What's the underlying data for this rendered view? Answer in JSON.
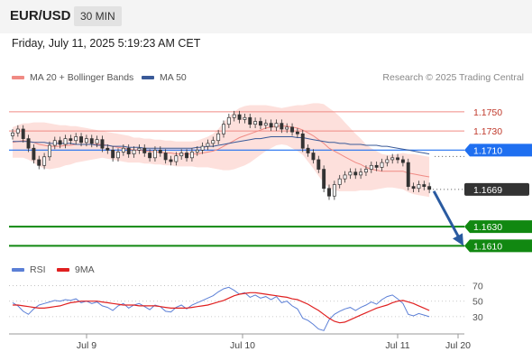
{
  "header": {
    "pair": "EUR/USD",
    "timeframe": "30 MIN"
  },
  "timestamp": "Friday, July 11, 2025 5:19:23 AM CET",
  "legend_main": [
    {
      "label": "MA 20 + Bollinger Bands",
      "color": "#f08a84"
    },
    {
      "label": "MA 50",
      "color": "#3a5a98"
    }
  ],
  "legend_rsi": [
    {
      "label": "RSI",
      "color": "#5b7fd6"
    },
    {
      "label": "9MA",
      "color": "#e02020"
    }
  ],
  "credit": "Research © 2025 Trading Central",
  "colors": {
    "bull": "#ffffff",
    "bear": "#333333",
    "band_fill": "#fde0dc",
    "resistance": "#f08a84",
    "pivot": "#1f6ff0",
    "support": "#118811",
    "price_tag": "#333333",
    "arrow": "#2a5aa0"
  },
  "chart_data": [
    {
      "type": "candlestick",
      "x_ticks": [
        "Jul 9",
        "Jul 10",
        "Jul 11",
        "Jul 20"
      ],
      "ylim": [
        1.16,
        1.1765
      ],
      "levels": [
        {
          "label": "1.1750",
          "value": 1.175,
          "kind": "resistance"
        },
        {
          "label": "1.1730",
          "value": 1.173,
          "kind": "resistance"
        },
        {
          "label": "1.1710",
          "value": 1.171,
          "kind": "pivot"
        },
        {
          "label": "1.1669",
          "value": 1.1669,
          "kind": "price"
        },
        {
          "label": "1.1630",
          "value": 1.163,
          "kind": "support"
        },
        {
          "label": "1.1610",
          "value": 1.161,
          "kind": "support"
        }
      ],
      "close": [
        1.1728,
        1.1732,
        1.1722,
        1.1712,
        1.17,
        1.1694,
        1.1703,
        1.1715,
        1.172,
        1.1716,
        1.1722,
        1.172,
        1.1724,
        1.1718,
        1.1722,
        1.1717,
        1.1721,
        1.1712,
        1.171,
        1.1702,
        1.1708,
        1.1712,
        1.1706,
        1.171,
        1.1712,
        1.1707,
        1.1702,
        1.171,
        1.1707,
        1.17,
        1.1698,
        1.1704,
        1.1707,
        1.1702,
        1.1708,
        1.171,
        1.1714,
        1.1717,
        1.172,
        1.1727,
        1.1737,
        1.1744,
        1.1747,
        1.1742,
        1.1744,
        1.1737,
        1.174,
        1.1736,
        1.1738,
        1.1734,
        1.1738,
        1.1732,
        1.1734,
        1.1729,
        1.1727,
        1.1712,
        1.1707,
        1.17,
        1.169,
        1.167,
        1.1662,
        1.1674,
        1.168,
        1.1684,
        1.1687,
        1.1684,
        1.1687,
        1.169,
        1.1694,
        1.1692,
        1.1697,
        1.17,
        1.1702,
        1.17,
        1.1697,
        1.1672,
        1.167,
        1.1674,
        1.1672,
        1.1669
      ],
      "ma20": [
        1.1718,
        1.1719,
        1.172,
        1.1719,
        1.1718,
        1.1716,
        1.1715,
        1.1714,
        1.1714,
        1.1714,
        1.1715,
        1.1715,
        1.1716,
        1.1716,
        1.1716,
        1.1716,
        1.1716,
        1.1716,
        1.1715,
        1.1714,
        1.1713,
        1.1712,
        1.1711,
        1.171,
        1.171,
        1.1709,
        1.1709,
        1.1708,
        1.1708,
        1.1707,
        1.1707,
        1.1706,
        1.1706,
        1.1706,
        1.1706,
        1.1706,
        1.1707,
        1.1708,
        1.1709,
        1.1711,
        1.1714,
        1.1717,
        1.172,
        1.1723,
        1.1725,
        1.1727,
        1.1729,
        1.1731,
        1.1733,
        1.1734,
        1.1735,
        1.1735,
        1.1735,
        1.1734,
        1.1733,
        1.1731,
        1.1728,
        1.1725,
        1.1721,
        1.1717,
        1.1712,
        1.1709,
        1.1706,
        1.1703,
        1.17,
        1.1697,
        1.1695,
        1.1692,
        1.169,
        1.1689,
        1.1688,
        1.1688,
        1.1688,
        1.1688,
        1.1688,
        1.1686,
        1.1685,
        1.1684,
        1.1683,
        1.1682
      ],
      "bb_width": [
        0.0016,
        0.0017,
        0.0018,
        0.0019,
        0.0021,
        0.0023,
        0.0024,
        0.0024,
        0.0023,
        0.0022,
        0.0021,
        0.002,
        0.0019,
        0.0018,
        0.0017,
        0.0016,
        0.0015,
        0.0014,
        0.0014,
        0.0014,
        0.0014,
        0.0014,
        0.0014,
        0.0013,
        0.0013,
        0.0013,
        0.0013,
        0.0013,
        0.0013,
        0.0013,
        0.0013,
        0.0013,
        0.0013,
        0.0013,
        0.0013,
        0.0014,
        0.0015,
        0.0016,
        0.0018,
        0.0021,
        0.0025,
        0.0028,
        0.003,
        0.0031,
        0.0031,
        0.003,
        0.0028,
        0.0026,
        0.0024,
        0.0022,
        0.002,
        0.0019,
        0.002,
        0.0022,
        0.0024,
        0.0026,
        0.003,
        0.0034,
        0.0038,
        0.0041,
        0.0042,
        0.0041,
        0.0039,
        0.0036,
        0.0033,
        0.003,
        0.0027,
        0.0024,
        0.0022,
        0.002,
        0.0018,
        0.0017,
        0.0017,
        0.0018,
        0.0019,
        0.002,
        0.0021,
        0.0021,
        0.0021,
        0.0021
      ],
      "ma50": [
        1.1719,
        1.1719,
        1.1719,
        1.1719,
        1.1718,
        1.1718,
        1.1718,
        1.1717,
        1.1717,
        1.1717,
        1.1717,
        1.1717,
        1.1716,
        1.1716,
        1.1716,
        1.1716,
        1.1715,
        1.1715,
        1.1715,
        1.1714,
        1.1714,
        1.1714,
        1.1713,
        1.1713,
        1.1713,
        1.1712,
        1.1712,
        1.1712,
        1.1712,
        1.1712,
        1.1712,
        1.1712,
        1.1712,
        1.1712,
        1.1712,
        1.1713,
        1.1713,
        1.1714,
        1.1714,
        1.1715,
        1.1716,
        1.1717,
        1.1718,
        1.1719,
        1.172,
        1.1721,
        1.1722,
        1.1722,
        1.1723,
        1.1724,
        1.1724,
        1.1724,
        1.1724,
        1.1724,
        1.1723,
        1.1723,
        1.1722,
        1.1721,
        1.172,
        1.1719,
        1.1718,
        1.1718,
        1.1717,
        1.1717,
        1.1716,
        1.1716,
        1.1716,
        1.1715,
        1.1715,
        1.1715,
        1.1714,
        1.1714,
        1.1713,
        1.1712,
        1.1711,
        1.171,
        1.1709,
        1.1708,
        1.1707,
        1.1706
      ],
      "forecast": [
        1.1669,
        1.161
      ]
    },
    {
      "type": "line",
      "name": "RSI",
      "y_ticks": [
        "70",
        "50",
        "30"
      ],
      "ylim": [
        10,
        80
      ],
      "rsi": [
        48,
        44,
        37,
        33,
        40,
        45,
        47,
        49,
        51,
        50,
        52,
        51,
        53,
        48,
        50,
        47,
        49,
        44,
        42,
        38,
        44,
        47,
        41,
        45,
        47,
        43,
        39,
        45,
        43,
        37,
        36,
        42,
        45,
        40,
        45,
        48,
        51,
        54,
        57,
        62,
        66,
        68,
        64,
        59,
        61,
        55,
        58,
        54,
        56,
        52,
        56,
        48,
        50,
        44,
        40,
        28,
        25,
        20,
        14,
        12,
        26,
        33,
        37,
        40,
        42,
        38,
        42,
        45,
        49,
        46,
        52,
        56,
        58,
        53,
        47,
        33,
        31,
        34,
        32,
        30
      ],
      "rsi_ma9": [
        45,
        45,
        44,
        43,
        42,
        41,
        41,
        42,
        43,
        44,
        46,
        48,
        49,
        50,
        50,
        50,
        50,
        49,
        48,
        47,
        46,
        45,
        45,
        45,
        44,
        44,
        44,
        44,
        43,
        42,
        41,
        41,
        41,
        41,
        42,
        43,
        44,
        45,
        47,
        49,
        51,
        54,
        57,
        59,
        60,
        61,
        61,
        60,
        59,
        58,
        57,
        56,
        55,
        53,
        52,
        49,
        46,
        42,
        38,
        33,
        28,
        24,
        22,
        23,
        26,
        29,
        32,
        35,
        38,
        41,
        43,
        45,
        48,
        50,
        51,
        49,
        47,
        44,
        41,
        38
      ]
    }
  ]
}
